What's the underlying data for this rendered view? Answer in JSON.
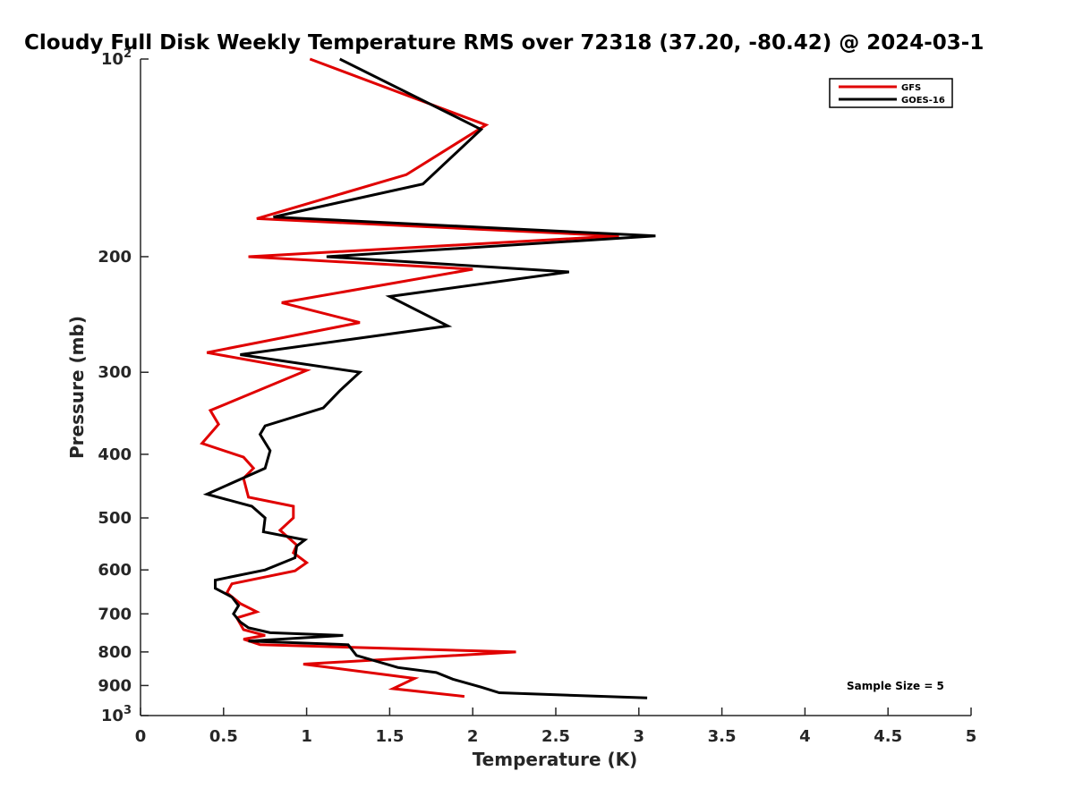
{
  "chart_data": {
    "type": "line",
    "title": "Cloudy Full Disk Weekly Temperature RMS over 72318 (37.20, -80.42) @ 2024-03-1",
    "xlabel": "Temperature (K)",
    "ylabel": "Pressure (mb)",
    "xlim": [
      0,
      5
    ],
    "ylim": [
      100,
      1000
    ],
    "y_scale": "log",
    "y_reversed": true,
    "grid": false,
    "legend_position": "top-right",
    "x_ticks": [
      {
        "value": 0,
        "label": "0"
      },
      {
        "value": 0.5,
        "label": "0.5"
      },
      {
        "value": 1,
        "label": "1"
      },
      {
        "value": 1.5,
        "label": "1.5"
      },
      {
        "value": 2,
        "label": "2"
      },
      {
        "value": 2.5,
        "label": "2.5"
      },
      {
        "value": 3,
        "label": "3"
      },
      {
        "value": 3.5,
        "label": "3.5"
      },
      {
        "value": 4,
        "label": "4"
      },
      {
        "value": 4.5,
        "label": "4.5"
      },
      {
        "value": 5,
        "label": "5"
      }
    ],
    "y_ticks": [
      {
        "value": 100,
        "label": "10",
        "sup": "2"
      },
      {
        "value": 200,
        "label": "200"
      },
      {
        "value": 300,
        "label": "300"
      },
      {
        "value": 400,
        "label": "400"
      },
      {
        "value": 500,
        "label": "500"
      },
      {
        "value": 600,
        "label": "600"
      },
      {
        "value": 700,
        "label": "700"
      },
      {
        "value": 800,
        "label": "800"
      },
      {
        "value": 900,
        "label": "900"
      },
      {
        "value": 1000,
        "label": "10",
        "sup": "3"
      }
    ],
    "series": [
      {
        "name": "GFS",
        "color": "#e00000",
        "points": [
          [
            1.02,
            100
          ],
          [
            2.08,
            126
          ],
          [
            1.6,
            150
          ],
          [
            0.7,
            175
          ],
          [
            2.88,
            186
          ],
          [
            0.65,
            200
          ],
          [
            2.0,
            209
          ],
          [
            0.85,
            235
          ],
          [
            1.32,
            252
          ],
          [
            0.4,
            280
          ],
          [
            1.0,
            298
          ],
          [
            0.42,
            343
          ],
          [
            0.47,
            360
          ],
          [
            0.37,
            385
          ],
          [
            0.62,
            404
          ],
          [
            0.68,
            420
          ],
          [
            0.62,
            435
          ],
          [
            0.65,
            465
          ],
          [
            0.92,
            480
          ],
          [
            0.92,
            500
          ],
          [
            0.84,
            522
          ],
          [
            0.94,
            550
          ],
          [
            0.92,
            565
          ],
          [
            1.0,
            585
          ],
          [
            0.93,
            602
          ],
          [
            0.55,
            630
          ],
          [
            0.52,
            650
          ],
          [
            0.6,
            675
          ],
          [
            0.7,
            695
          ],
          [
            0.58,
            710
          ],
          [
            0.62,
            740
          ],
          [
            0.75,
            755
          ],
          [
            0.62,
            765
          ],
          [
            0.72,
            780
          ],
          [
            2.26,
            800
          ],
          [
            0.98,
            835
          ],
          [
            1.65,
            878
          ],
          [
            1.52,
            910
          ],
          [
            1.95,
            935
          ]
        ]
      },
      {
        "name": "GOES-16",
        "color": "#000000",
        "points": [
          [
            1.2,
            100
          ],
          [
            2.05,
            128
          ],
          [
            1.7,
            155
          ],
          [
            0.8,
            174
          ],
          [
            3.1,
            186
          ],
          [
            1.12,
            200
          ],
          [
            2.58,
            211
          ],
          [
            1.5,
            230
          ],
          [
            1.85,
            255
          ],
          [
            0.6,
            282
          ],
          [
            1.32,
            300
          ],
          [
            1.2,
            320
          ],
          [
            1.1,
            340
          ],
          [
            0.75,
            362
          ],
          [
            0.72,
            373
          ],
          [
            0.78,
            395
          ],
          [
            0.75,
            420
          ],
          [
            0.4,
            460
          ],
          [
            0.67,
            480
          ],
          [
            0.75,
            500
          ],
          [
            0.74,
            525
          ],
          [
            0.99,
            540
          ],
          [
            0.94,
            552
          ],
          [
            0.93,
            575
          ],
          [
            0.75,
            600
          ],
          [
            0.45,
            622
          ],
          [
            0.45,
            640
          ],
          [
            0.55,
            660
          ],
          [
            0.59,
            680
          ],
          [
            0.56,
            700
          ],
          [
            0.6,
            720
          ],
          [
            0.65,
            735
          ],
          [
            0.78,
            748
          ],
          [
            1.22,
            755
          ],
          [
            0.65,
            770
          ],
          [
            1.25,
            780
          ],
          [
            1.3,
            810
          ],
          [
            1.55,
            845
          ],
          [
            1.78,
            860
          ],
          [
            1.88,
            880
          ],
          [
            2.05,
            905
          ],
          [
            2.16,
            923
          ],
          [
            3.05,
            940
          ]
        ]
      }
    ],
    "annotations": [
      "Sample Size = 5"
    ]
  }
}
